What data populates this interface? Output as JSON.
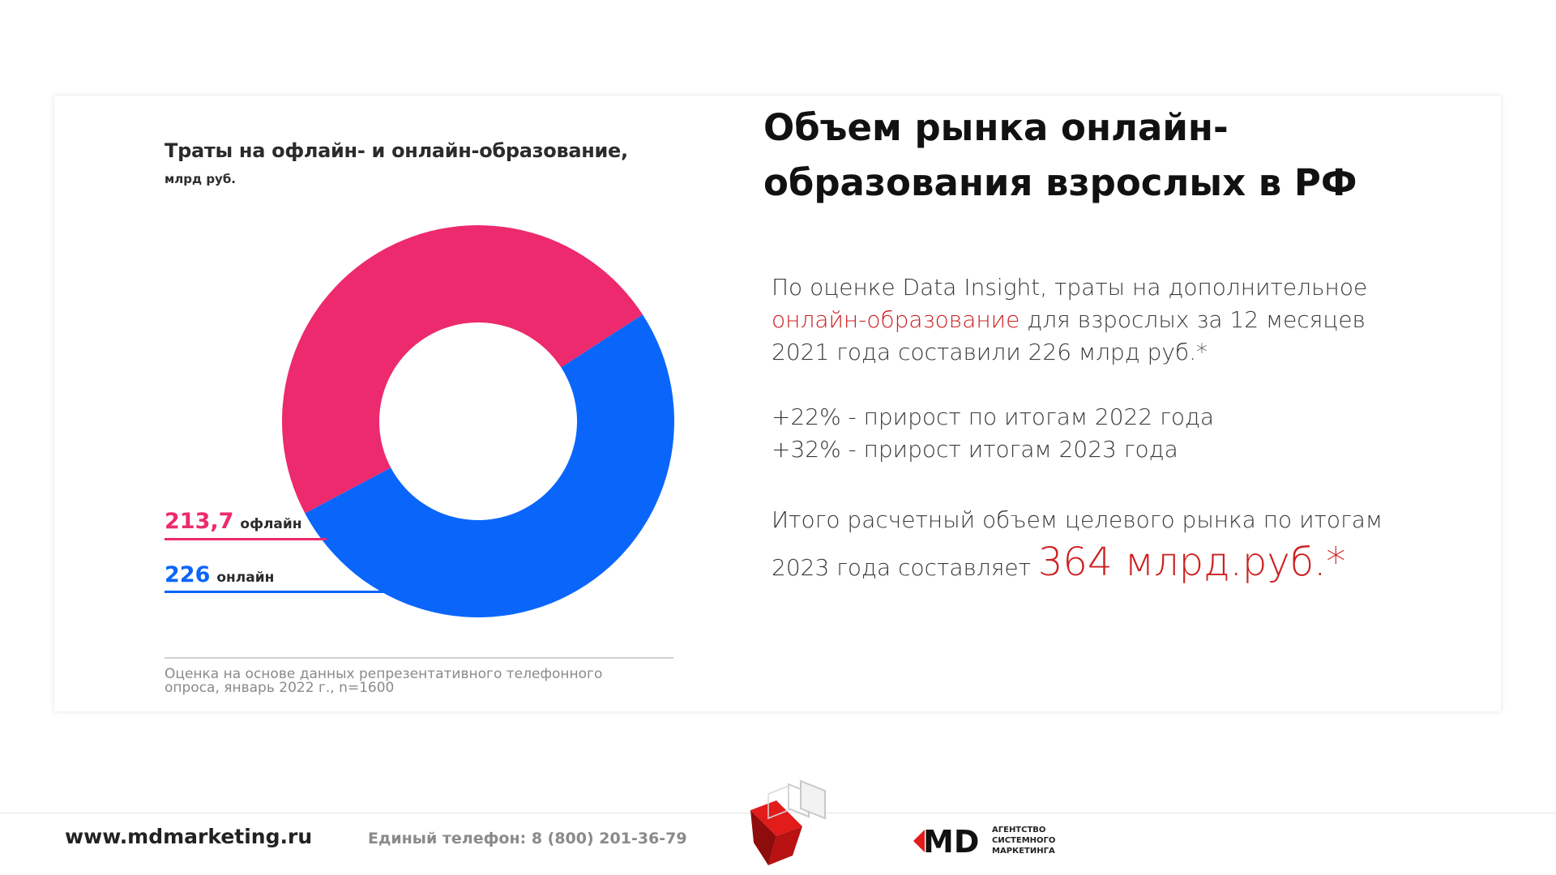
{
  "slide": {
    "heading_line1": "Объем рынка онлайн-",
    "heading_line2": "образования взрослых в РФ",
    "para1_a": "По оценке Data Insight, траты на дополнительное ",
    "para1_link": "онлайн-образование",
    "para1_b": " для взрослых за 12 месяцев 2021 года составили 226 млрд руб.*",
    "growth_1": "+22% - прирост по итогам 2022 года",
    "growth_2": "+32% - прирост итогам  2023 года",
    "total_a": "Итого расчетный объем целевого рынка по итогам 2023 года составляет ",
    "total_value": "364 млрд.руб.*"
  },
  "chart_data": {
    "type": "pie",
    "donut": true,
    "title": "Траты на офлайн- и онлайн-образование,",
    "subtitle": "млрд руб.",
    "categories": [
      "офлайн",
      "онлайн"
    ],
    "values": [
      213.7,
      226
    ],
    "value_labels": [
      "213,7",
      "226"
    ],
    "colors": [
      "#ec2a6d",
      "#0a66fb"
    ],
    "note": "Оценка на основе данных репрезентативного телефонного опроса, январь 2022 г., n=1600"
  },
  "footer": {
    "site": "www.mdmarketing.ru",
    "phone": "Единый телефон: 8 (800) 201-36-79",
    "brand_mark": "MD",
    "brand_text": "АГЕНТСТВО\nСИСТЕМНОГО\nМАРКЕТИНГА"
  }
}
